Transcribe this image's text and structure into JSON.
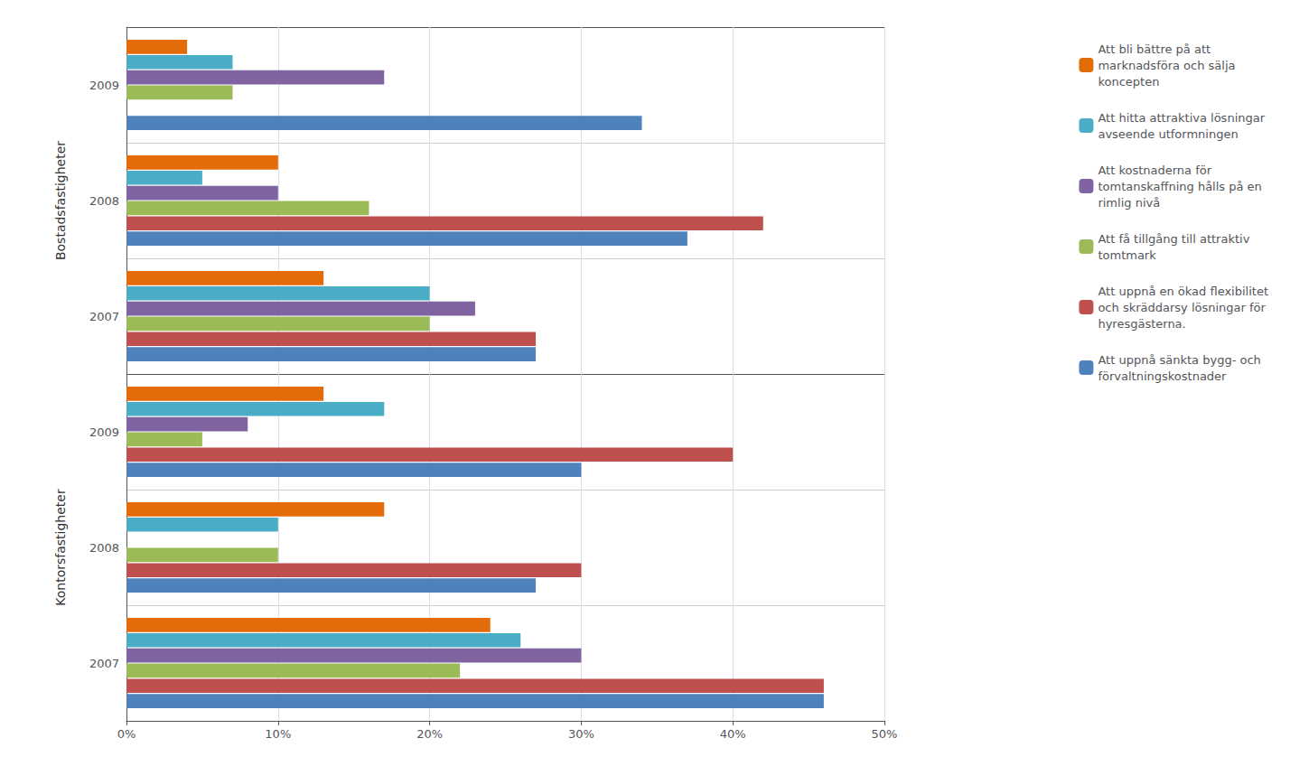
{
  "chart_data": {
    "type": "bar",
    "orientation": "horizontal",
    "sections": [
      {
        "label": "Kontorsfastigheter",
        "categories": [
          "2007",
          "2008",
          "2009"
        ]
      },
      {
        "label": "Bostadsfastigheter",
        "categories": [
          "2007",
          "2008",
          "2009"
        ]
      }
    ],
    "series": [
      {
        "name": "Att bli bättre på att\nmarknadsföra och sälja\nkoncepten",
        "color": "#E36C09",
        "values": [
          0.24,
          0.17,
          0.13,
          0.13,
          0.1,
          0.04
        ]
      },
      {
        "name": "Att hitta attraktiva lösningar\navseende utformningen",
        "color": "#4BACC6",
        "values": [
          0.26,
          0.1,
          0.17,
          0.2,
          0.05,
          0.07
        ]
      },
      {
        "name": "Att kostnaderna för\ntomtanskaffning hålls på en\nrimlig nivå",
        "color": "#8064A2",
        "values": [
          0.3,
          0.0,
          0.08,
          0.23,
          0.1,
          0.17
        ]
      },
      {
        "name": "Att få tillgång till attraktiv\ntomtmark",
        "color": "#9BBB59",
        "values": [
          0.22,
          0.1,
          0.05,
          0.2,
          0.16,
          0.07
        ]
      },
      {
        "name": "Att uppnå en ökad flexibilitet\noch skräddarsy lösningar för\nhyresgästerna.",
        "color": "#C0504D",
        "values": [
          0.46,
          0.3,
          0.4,
          0.27,
          0.42,
          0.0
        ]
      },
      {
        "name": "Att uppnå sänkta bygg- och\nförvaltningskostnader",
        "color": "#4F81BD",
        "values": [
          0.46,
          0.27,
          0.3,
          0.27,
          0.37,
          0.34
        ]
      }
    ],
    "xlim": [
      0.0,
      0.5
    ],
    "xticks": [
      {
        "value": 0.0,
        "label": "0%"
      },
      {
        "value": 0.1,
        "label": "10%"
      },
      {
        "value": 0.2,
        "label": "20%"
      },
      {
        "value": 0.3,
        "label": "30%"
      },
      {
        "value": 0.4,
        "label": "40%"
      },
      {
        "value": 0.5,
        "label": "50%"
      }
    ],
    "grid": true,
    "legend": "right"
  }
}
